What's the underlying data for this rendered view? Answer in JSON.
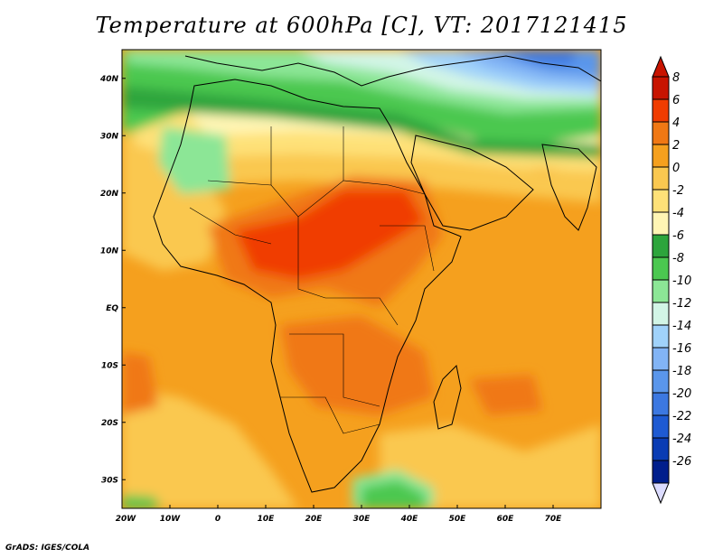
{
  "title": "Temperature at 600hPa [C], VT: 2017121415",
  "footer": "GrADS: IGES/COLA",
  "map": {
    "projection": "lat-lon",
    "lon_range": [
      -20,
      80
    ],
    "lat_range": [
      -35,
      45
    ],
    "lat_ticks": [
      {
        "value": 40,
        "label": "40N"
      },
      {
        "value": 30,
        "label": "30N"
      },
      {
        "value": 20,
        "label": "20N"
      },
      {
        "value": 10,
        "label": "10N"
      },
      {
        "value": 0,
        "label": "EQ"
      },
      {
        "value": -10,
        "label": "10S"
      },
      {
        "value": -20,
        "label": "20S"
      },
      {
        "value": -30,
        "label": "30S"
      }
    ],
    "lon_ticks": [
      {
        "value": -20,
        "label": "20W"
      },
      {
        "value": -10,
        "label": "10W"
      },
      {
        "value": 0,
        "label": "0"
      },
      {
        "value": 10,
        "label": "10E"
      },
      {
        "value": 20,
        "label": "20E"
      },
      {
        "value": 30,
        "label": "30E"
      },
      {
        "value": 40,
        "label": "40E"
      },
      {
        "value": 50,
        "label": "50E"
      },
      {
        "value": 60,
        "label": "60E"
      },
      {
        "value": 70,
        "label": "70E"
      }
    ]
  },
  "colorbar": {
    "levels": [
      {
        "label": "8",
        "color": "#c81400"
      },
      {
        "label": "6",
        "color": "#f03c00"
      },
      {
        "label": "4",
        "color": "#f07814"
      },
      {
        "label": "2",
        "color": "#f5a01e"
      },
      {
        "label": "0",
        "color": "#fac850"
      },
      {
        "label": "-2",
        "color": "#fee178"
      },
      {
        "label": "-4",
        "color": "#fff5b4"
      },
      {
        "label": "-6",
        "color": "#2da53c"
      },
      {
        "label": "-8",
        "color": "#4bc850"
      },
      {
        "label": "-10",
        "color": "#8ce696"
      },
      {
        "label": "-12",
        "color": "#d2f5e6"
      },
      {
        "label": "-14",
        "color": "#a0d2fa"
      },
      {
        "label": "-16",
        "color": "#82b4f5"
      },
      {
        "label": "-18",
        "color": "#5a96eb"
      },
      {
        "label": "-20",
        "color": "#3c78e1"
      },
      {
        "label": "-22",
        "color": "#1e5ad2"
      },
      {
        "label": "-24",
        "color": "#0a3cb4"
      },
      {
        "label": "-26",
        "color": "#001e8c"
      }
    ],
    "top_arrow_color": "#c81400",
    "bottom_arrow_color": "#dcdcff"
  }
}
